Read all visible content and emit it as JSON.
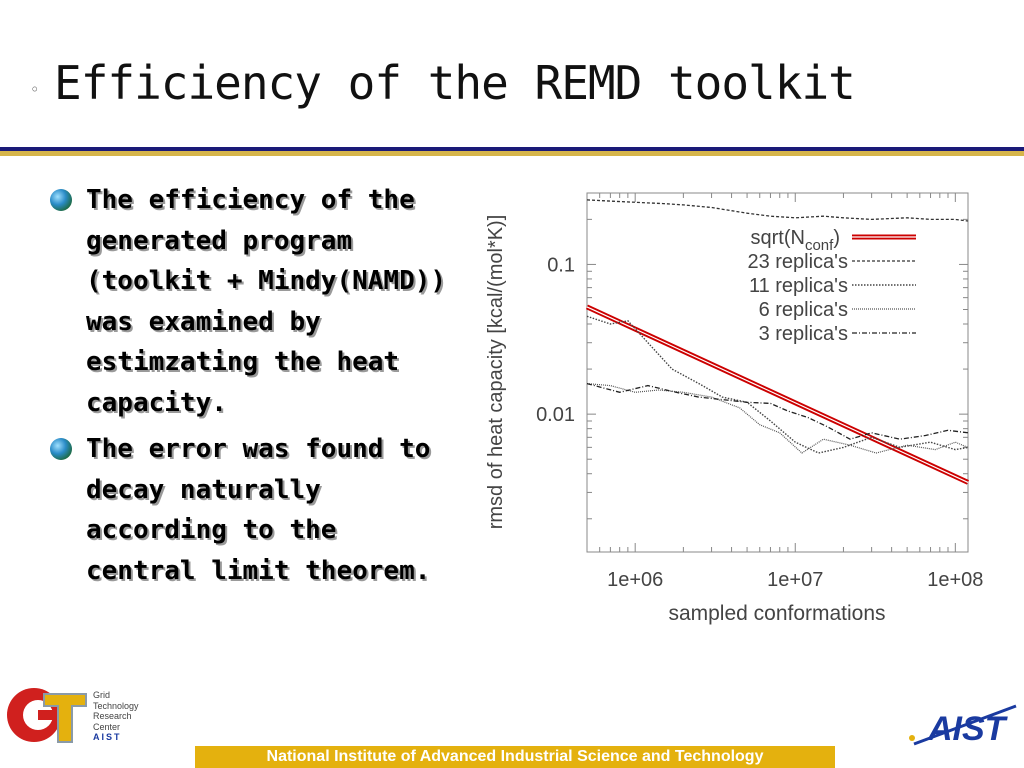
{
  "slide": {
    "title": "Efficiency of the REMD toolkit",
    "title_bullet": "◦",
    "bullets": [
      "The efficiency of the generated program (toolkit + Mindy(NAMD)) was examined by estimzating the heat capacity.",
      "The error was found to decay naturally according to the central limit theorem."
    ],
    "footer": "National Institute of Advanced Industrial Science and Technology",
    "logo_gtrc_lines": [
      "Grid",
      "Technology",
      "Research",
      "Center",
      "AIST"
    ],
    "logo_aist": "AIST"
  },
  "chart_data": {
    "type": "line",
    "title": "",
    "xlabel": "sampled conformations",
    "ylabel": "rmsd of heat capacity [kcal/(mol*K)]",
    "x_scale": "log",
    "y_scale": "log",
    "xlim": [
      500000,
      120000000
    ],
    "ylim": [
      0.0012,
      0.3
    ],
    "x_ticks": [
      {
        "value": 1000000,
        "label": "1e+06"
      },
      {
        "value": 10000000,
        "label": "1e+07"
      },
      {
        "value": 100000000,
        "label": "1e+08"
      }
    ],
    "y_ticks": [
      {
        "value": 0.1,
        "label": "0.1"
      },
      {
        "value": 0.01,
        "label": "0.01"
      }
    ],
    "legend_position": "top-right",
    "grid": false,
    "series": [
      {
        "name": "sqrt(Nconf)",
        "legend_main": "sqrt(N",
        "legend_sub": "conf",
        "legend_tail": ")",
        "style": "red-double",
        "color": "#cc0000",
        "x": [
          500000,
          120000000
        ],
        "y": [
          0.052,
          0.0035
        ]
      },
      {
        "name": "23 replica's",
        "style": "dash-fine",
        "color": "#333333",
        "x": [
          500000,
          700000,
          1000000,
          1500000,
          2000000,
          3000000,
          5000000,
          7000000,
          10000000,
          15000000,
          20000000,
          30000000,
          50000000,
          70000000,
          100000000,
          120000000
        ],
        "y": [
          0.27,
          0.265,
          0.26,
          0.255,
          0.25,
          0.24,
          0.22,
          0.21,
          0.205,
          0.21,
          0.205,
          0.2,
          0.205,
          0.2,
          0.2,
          0.195
        ]
      },
      {
        "name": "11 replica's",
        "style": "dot",
        "color": "#444444",
        "x": [
          500000,
          700000,
          900000,
          1200000,
          1700000,
          2500000,
          3500000,
          5000000,
          7000000,
          10000000,
          14000000,
          20000000,
          30000000,
          45000000,
          70000000,
          100000000,
          120000000
        ],
        "y": [
          0.045,
          0.04,
          0.042,
          0.03,
          0.02,
          0.016,
          0.013,
          0.012,
          0.009,
          0.0065,
          0.0055,
          0.006,
          0.007,
          0.006,
          0.0065,
          0.0058,
          0.006
        ]
      },
      {
        "name": "6 replica's",
        "style": "dot-fine",
        "color": "#555555",
        "x": [
          500000,
          700000,
          1000000,
          1400000,
          2000000,
          3000000,
          4500000,
          6000000,
          8000000,
          11000000,
          15000000,
          22000000,
          32000000,
          50000000,
          75000000,
          100000000,
          120000000
        ],
        "y": [
          0.016,
          0.0155,
          0.014,
          0.0145,
          0.014,
          0.013,
          0.011,
          0.0085,
          0.0075,
          0.0055,
          0.0068,
          0.0062,
          0.0055,
          0.0062,
          0.0058,
          0.0065,
          0.006
        ]
      },
      {
        "name": "3 replica's",
        "style": "dash-dot",
        "color": "#222222",
        "x": [
          500000,
          800000,
          1200000,
          1800000,
          2500000,
          3500000,
          5000000,
          7000000,
          9000000,
          12000000,
          16000000,
          22000000,
          30000000,
          45000000,
          65000000,
          90000000,
          120000000
        ],
        "y": [
          0.016,
          0.014,
          0.0155,
          0.014,
          0.013,
          0.0125,
          0.012,
          0.0118,
          0.0105,
          0.0095,
          0.0082,
          0.0068,
          0.0075,
          0.0068,
          0.0072,
          0.0078,
          0.0075
        ]
      }
    ]
  }
}
